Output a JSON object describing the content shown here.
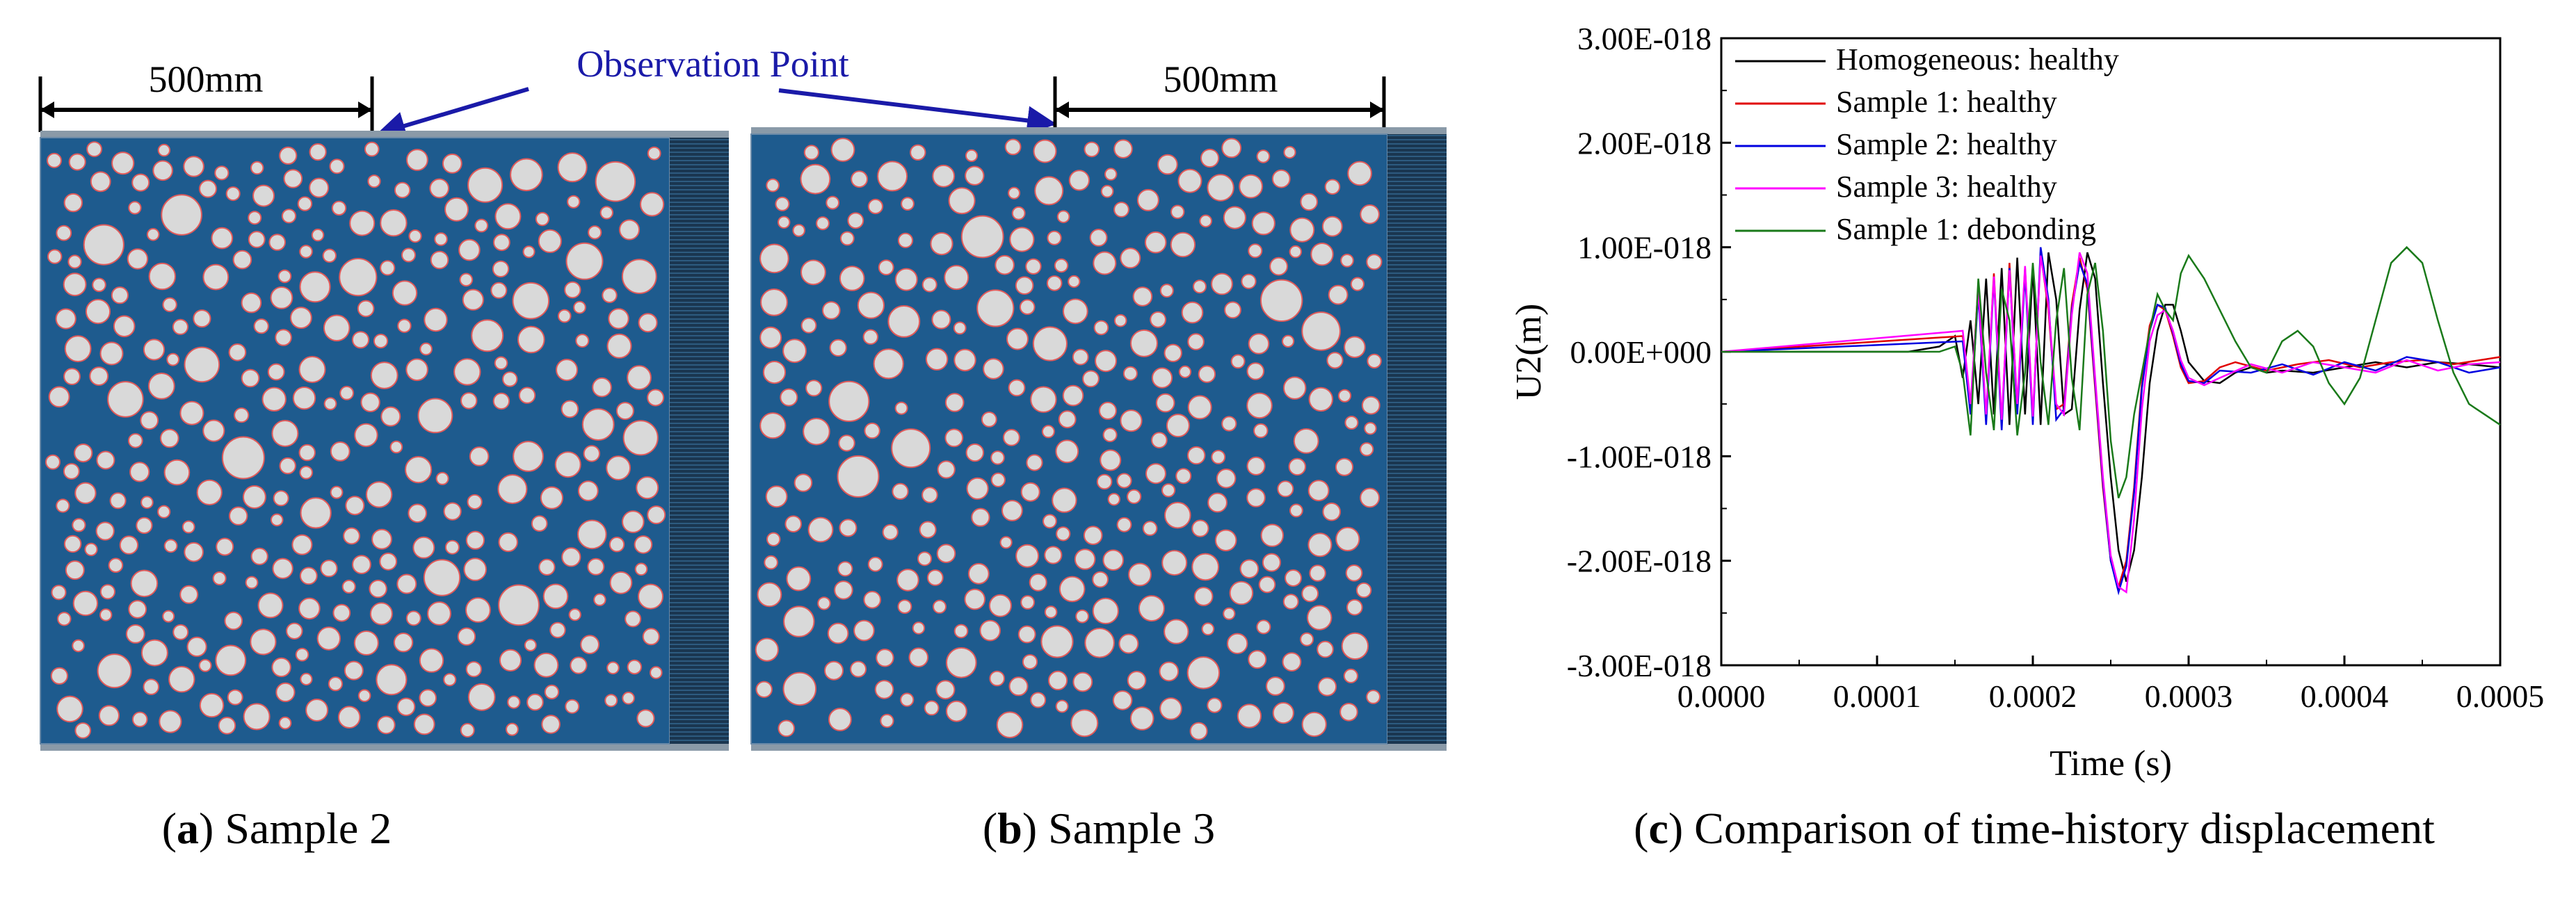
{
  "figure": {
    "panel_a": {
      "dimension_label": "500mm",
      "observation_label": "Observation Point",
      "caption_letter": "a",
      "caption_text": " Sample 2"
    },
    "panel_b": {
      "dimension_label": "500mm",
      "caption_letter": "b",
      "caption_text": " Sample 3"
    },
    "panel_c": {
      "caption_letter": "c",
      "caption_text": " Comparison of time-history displacement"
    }
  },
  "colors": {
    "matrix_blue": "#1e5b8e",
    "aggregate_fill": "#d9d9d9",
    "aggregate_edge": "#e05a5a",
    "absorbing_band": "#1a3650",
    "annotation_blue": "#1a1aa8"
  },
  "chart_data": {
    "type": "line",
    "xlabel": "Time (s)",
    "ylabel": "U2(m)",
    "xlim": [
      0,
      0.0005
    ],
    "ylim": [
      -3e-18,
      3e-18
    ],
    "x_ticks": [
      "0.0000",
      "0.0001",
      "0.0002",
      "0.0003",
      "0.0004",
      "0.0005"
    ],
    "y_ticks": [
      "-3.00E-018",
      "-2.00E-018",
      "-1.00E-018",
      "0.00E+000",
      "1.00E-018",
      "2.00E-018",
      "3.00E-018"
    ],
    "legend_position": "top-left",
    "series": [
      {
        "name": "Homogeneous: healthy",
        "color": "#000000",
        "x": [
          0,
          0.00012,
          0.00014,
          0.00015,
          0.000155,
          0.00016,
          0.000165,
          0.00017,
          0.000175,
          0.00018,
          0.000185,
          0.00019,
          0.000195,
          0.0002,
          0.000205,
          0.00021,
          0.000215,
          0.00022,
          0.000225,
          0.00023,
          0.000235,
          0.00024,
          0.000245,
          0.00025,
          0.000255,
          0.00026,
          0.000265,
          0.00027,
          0.000275,
          0.00028,
          0.000285,
          0.00029,
          0.000295,
          0.0003,
          0.00031,
          0.00032,
          0.00033,
          0.00034,
          0.00035,
          0.00036,
          0.00038,
          0.0004,
          0.00042,
          0.00044,
          0.00046,
          0.00048,
          0.0005
        ],
        "y": [
          0,
          0,
          5e-20,
          1.5e-19,
          -2.5e-19,
          3e-19,
          -5e-19,
          7e-19,
          -6e-19,
          8e-19,
          -7e-19,
          9e-19,
          -6e-19,
          8e-19,
          -7e-19,
          9.5e-19,
          5e-19,
          -6e-19,
          -5.5e-19,
          4e-19,
          9.5e-19,
          7e-19,
          -3e-19,
          -1.2e-18,
          -1.9e-18,
          -2.2e-18,
          -1.9e-18,
          -1.2e-18,
          -3e-19,
          2e-19,
          4.5e-19,
          4.5e-19,
          2e-19,
          -1e-19,
          -2.8e-19,
          -3e-19,
          -2e-19,
          -1.5e-19,
          -2e-19,
          -1.8e-19,
          -2e-19,
          -1.5e-19,
          -1e-19,
          -1.5e-19,
          -1e-19,
          -1.2e-19,
          -1.5e-19
        ]
      },
      {
        "name": "Sample 1: healthy",
        "color": "#e00000",
        "x": [
          0,
          0.000155,
          0.00016,
          0.000165,
          0.00017,
          0.000175,
          0.00018,
          0.000185,
          0.00019,
          0.000195,
          0.0002,
          0.000205,
          0.00021,
          0.000215,
          0.00022,
          0.000225,
          0.00023,
          0.000235,
          0.00024,
          0.000245,
          0.00025,
          0.000255,
          0.00026,
          0.000265,
          0.00027,
          0.000275,
          0.00028,
          0.000285,
          0.00029,
          0.000295,
          0.0003,
          0.00031,
          0.00032,
          0.00033,
          0.00035,
          0.00037,
          0.00039,
          0.00041,
          0.00043,
          0.00045,
          0.00047,
          0.0005
        ],
        "y": [
          0,
          1.5e-19,
          -5.5e-19,
          6.5e-19,
          -6.5e-19,
          7.5e-19,
          -7e-19,
          8.5e-19,
          -5.5e-19,
          8e-19,
          -6.5e-19,
          9.5e-19,
          4e-19,
          -5.5e-19,
          -5e-19,
          4.5e-19,
          9e-19,
          6e-19,
          -3.5e-19,
          -1.3e-18,
          -2e-18,
          -2.25e-18,
          -2e-18,
          -1.3e-18,
          -3e-19,
          2.5e-19,
          4.5e-19,
          4e-19,
          1.5e-19,
          -1.5e-19,
          -3e-19,
          -2.8e-19,
          -1.5e-19,
          -1e-19,
          -1.8e-19,
          -1.2e-19,
          -8e-20,
          -1.5e-19,
          -1e-19,
          -8e-20,
          -1.2e-19,
          -5e-20
        ]
      },
      {
        "name": "Sample 2: healthy",
        "color": "#0000e0",
        "x": [
          0,
          0.000155,
          0.00016,
          0.000165,
          0.00017,
          0.000175,
          0.00018,
          0.000185,
          0.00019,
          0.000195,
          0.0002,
          0.000205,
          0.00021,
          0.000215,
          0.00022,
          0.000225,
          0.00023,
          0.000235,
          0.00024,
          0.000245,
          0.00025,
          0.000255,
          0.00026,
          0.000265,
          0.00027,
          0.000275,
          0.00028,
          0.000285,
          0.00029,
          0.000295,
          0.0003,
          0.00031,
          0.00032,
          0.00034,
          0.00036,
          0.00038,
          0.0004,
          0.00042,
          0.00044,
          0.00046,
          0.00048,
          0.0005
        ],
        "y": [
          0,
          1e-19,
          -6e-19,
          5.5e-19,
          -7e-19,
          7e-19,
          -7.5e-19,
          8e-19,
          -6e-19,
          7.5e-19,
          -7e-19,
          1e-18,
          5e-19,
          -6.5e-19,
          -5.5e-19,
          4e-19,
          8.5e-19,
          6.5e-19,
          -3e-19,
          -1.25e-18,
          -2e-18,
          -2.3e-18,
          -2.05e-18,
          -1.35e-18,
          -3.5e-19,
          2e-19,
          4.5e-19,
          4.2e-19,
          1.8e-19,
          -1.2e-19,
          -2.8e-19,
          -3e-19,
          -1.8e-19,
          -2e-19,
          -1.2e-19,
          -2.2e-19,
          -1e-19,
          -1.8e-19,
          -5e-20,
          -1e-19,
          -2e-19,
          -1.5e-19
        ]
      },
      {
        "name": "Sample 3: healthy",
        "color": "#ff00ff",
        "x": [
          0,
          0.000155,
          0.00016,
          0.000165,
          0.00017,
          0.000175,
          0.00018,
          0.000185,
          0.00019,
          0.000195,
          0.0002,
          0.000205,
          0.00021,
          0.000215,
          0.00022,
          0.000225,
          0.00023,
          0.000235,
          0.00024,
          0.000245,
          0.00025,
          0.000255,
          0.00026,
          0.000265,
          0.00027,
          0.000275,
          0.00028,
          0.000285,
          0.00029,
          0.000295,
          0.0003,
          0.00031,
          0.00032,
          0.00034,
          0.00036,
          0.00038,
          0.0004,
          0.00042,
          0.00044,
          0.00046,
          0.00048,
          0.0005
        ],
        "y": [
          0,
          2e-19,
          -5e-19,
          6e-19,
          -6e-19,
          7.2e-19,
          -6.5e-19,
          7.8e-19,
          -5e-19,
          8.2e-19,
          -6.2e-19,
          9.2e-19,
          4.5e-19,
          -5e-19,
          -6e-19,
          3.5e-19,
          9.5e-19,
          7.5e-19,
          -2.5e-19,
          -1.2e-18,
          -1.95e-18,
          -2.25e-18,
          -2.3e-18,
          -1.6e-18,
          -5.5e-19,
          1e-19,
          3.5e-19,
          4e-19,
          2e-19,
          -8e-20,
          -2.5e-19,
          -3.2e-19,
          -2.5e-19,
          -1.2e-19,
          -2e-19,
          -1e-19,
          -1.5e-19,
          -2e-19,
          -8e-20,
          -1.8e-19,
          -1.2e-19,
          -1e-19
        ]
      },
      {
        "name": "Sample 1: debonding",
        "color": "#1a7a1a",
        "x": [
          0,
          0.00014,
          0.00015,
          0.000155,
          0.00016,
          0.000165,
          0.00017,
          0.000175,
          0.00018,
          0.000185,
          0.00019,
          0.000195,
          0.0002,
          0.000205,
          0.00021,
          0.000215,
          0.00022,
          0.000225,
          0.00023,
          0.000235,
          0.00024,
          0.000245,
          0.00025,
          0.000255,
          0.00026,
          0.000265,
          0.00027,
          0.000275,
          0.00028,
          0.000285,
          0.00029,
          0.000295,
          0.0003,
          0.00031,
          0.00032,
          0.00033,
          0.00034,
          0.00035,
          0.00036,
          0.00037,
          0.00038,
          0.00039,
          0.0004,
          0.00041,
          0.00042,
          0.00043,
          0.00044,
          0.00045,
          0.00046,
          0.00047,
          0.00048,
          0.00049,
          0.0005
        ],
        "y": [
          0,
          0,
          5e-20,
          -2e-19,
          -8e-19,
          7e-19,
          -2e-19,
          -7.5e-19,
          6e-19,
          3e-19,
          -8e-19,
          -2e-19,
          8.5e-19,
          -1e-19,
          -7e-19,
          3e-19,
          8e-19,
          -2.5e-19,
          -7.5e-19,
          5.5e-19,
          8.5e-19,
          2e-19,
          -8.5e-19,
          -1.4e-18,
          -1.2e-18,
          -6e-19,
          -2e-19,
          2e-19,
          5.5e-19,
          4e-19,
          3e-19,
          7.5e-19,
          9.2e-19,
          7e-19,
          4e-19,
          1e-19,
          -1.5e-19,
          -2e-19,
          1e-19,
          2e-19,
          5e-20,
          -3e-19,
          -5e-19,
          -2.5e-19,
          3e-19,
          8.5e-19,
          1e-18,
          8.5e-19,
          3e-19,
          -2e-19,
          -5e-19,
          -6e-19,
          -7e-19
        ]
      }
    ]
  }
}
